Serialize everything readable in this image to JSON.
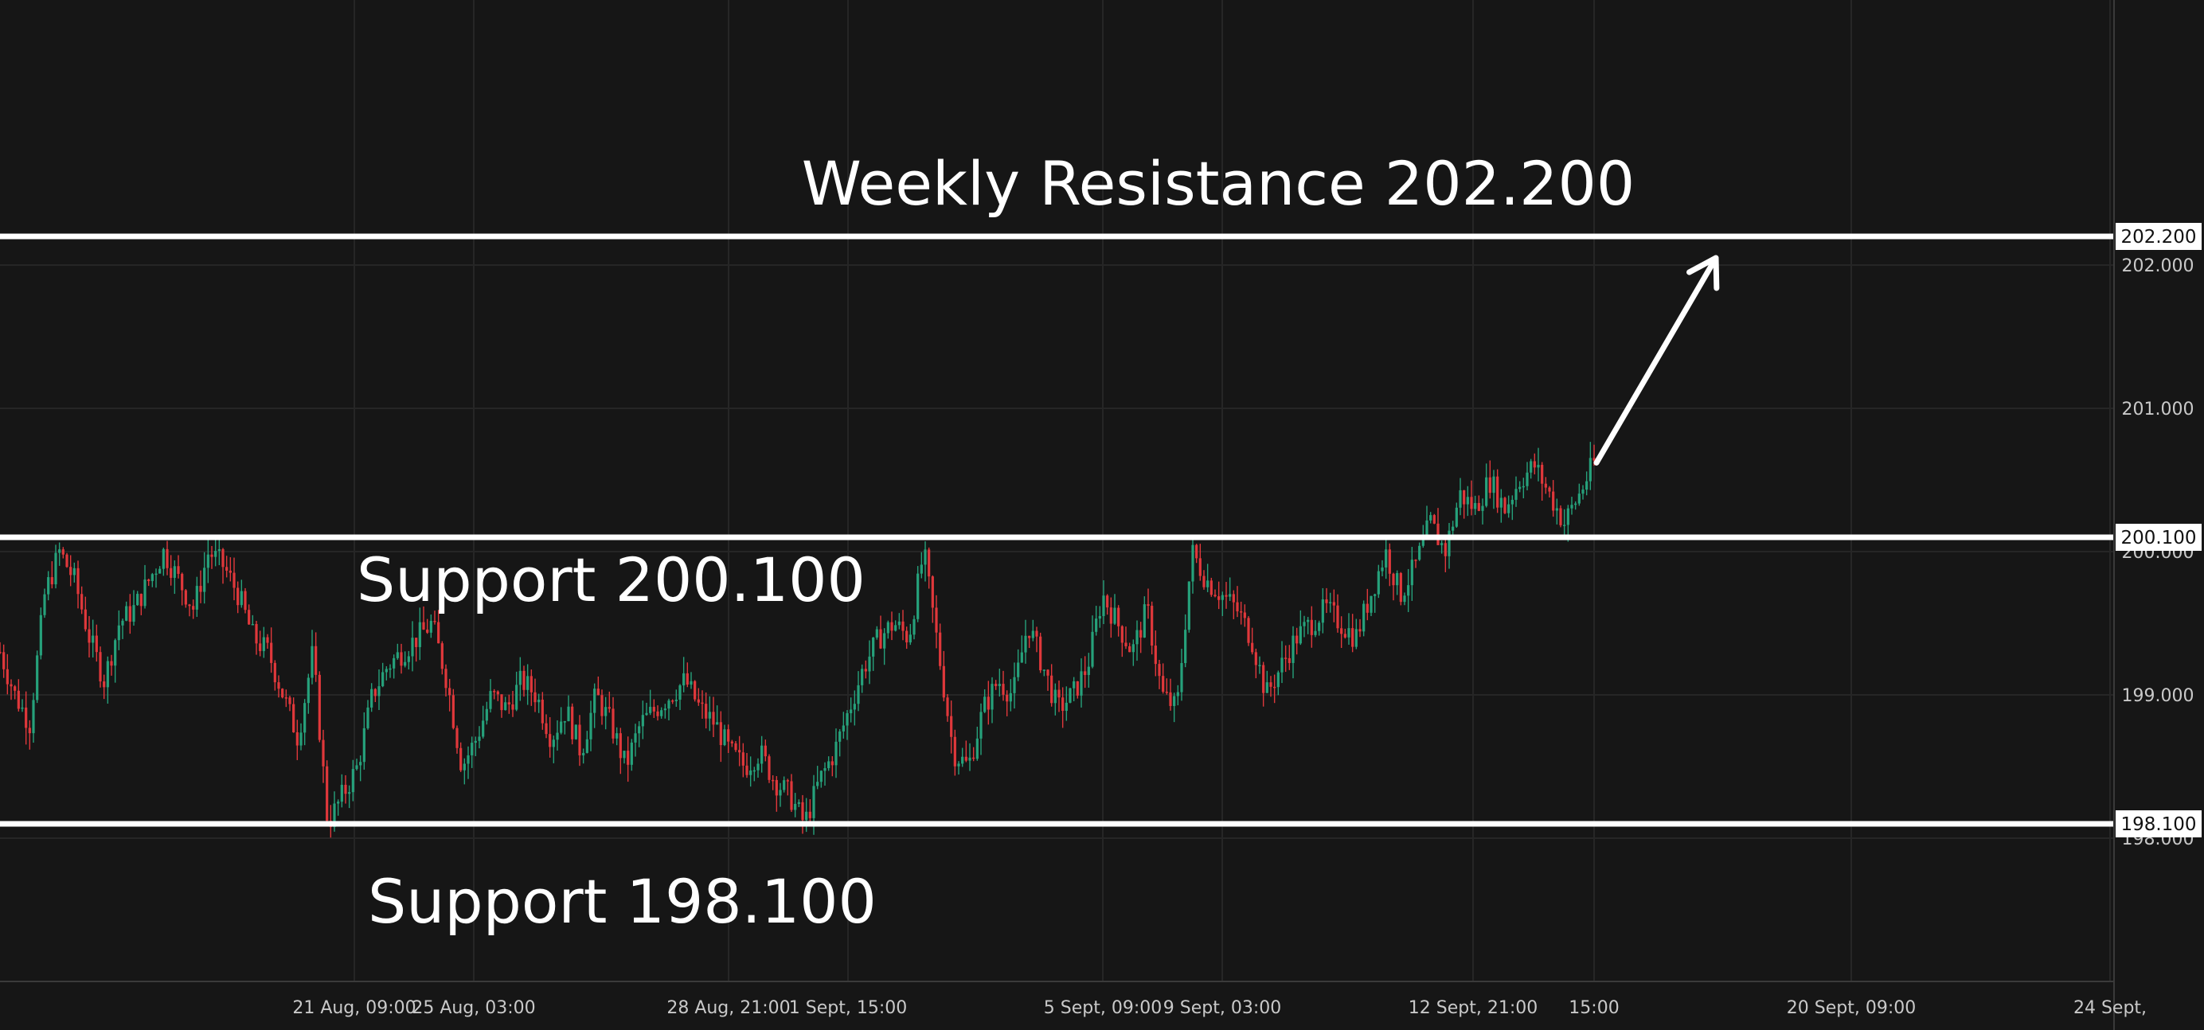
{
  "chart_data": {
    "type": "candlestick",
    "price_axis": {
      "ylim": [
        197.0,
        203.85
      ],
      "ticks": [
        "202.000",
        "201.000",
        "200.000",
        "199.000",
        "198.000"
      ]
    },
    "time_axis": {
      "ticks": [
        "21 Aug, 09:00",
        "25 Aug, 03:00",
        "28 Aug, 21:00",
        "1 Sept, 15:00",
        "5 Sept, 09:00",
        "9 Sept, 03:00",
        "12 Sept, 21:00",
        "15:00",
        "20 Sept, 09:00",
        "24 Sept,"
      ]
    },
    "grid": true,
    "levels": [
      {
        "price": 202.2,
        "label": "Weekly Resistance 202.200",
        "badge": "202.200"
      },
      {
        "price": 200.1,
        "label": "Support 200.100",
        "badge": "200.100"
      },
      {
        "price": 198.1,
        "label": "Support 198.100",
        "badge": "198.100"
      }
    ],
    "arrow": {
      "from_price": 200.62,
      "to_price": 202.05
    },
    "price_path": [
      199.3,
      199.0,
      198.8,
      199.7,
      200.0,
      199.8,
      199.4,
      199.1,
      199.5,
      199.6,
      199.8,
      200.0,
      199.8,
      199.6,
      200.0,
      199.9,
      199.7,
      199.4,
      199.3,
      199.0,
      198.7,
      199.3,
      198.1,
      198.3,
      198.5,
      199.0,
      199.2,
      199.3,
      199.4,
      199.5,
      199.1,
      198.5,
      198.7,
      199.0,
      198.9,
      199.1,
      199.0,
      198.7,
      198.9,
      198.6,
      199.0,
      198.8,
      198.5,
      198.8,
      198.9,
      199.0,
      199.1,
      198.9,
      198.8,
      198.6,
      198.5,
      198.6,
      198.4,
      198.3,
      198.1,
      198.4,
      198.6,
      198.9,
      199.2,
      199.4,
      199.5,
      199.4,
      200.0,
      199.3,
      198.6,
      198.5,
      198.9,
      199.1,
      199.0,
      199.5,
      199.2,
      198.9,
      199.0,
      199.2,
      199.7,
      199.5,
      199.3,
      199.6,
      199.0,
      198.9,
      200.0,
      199.8,
      199.7,
      199.6,
      199.4,
      199.0,
      199.2,
      199.4,
      199.5,
      199.6,
      199.5,
      199.4,
      199.7,
      200.0,
      199.7,
      199.9,
      200.2,
      200.0,
      200.4,
      200.3,
      200.5,
      200.3,
      200.5,
      200.6,
      200.4,
      200.2,
      200.4,
      200.62
    ]
  }
}
